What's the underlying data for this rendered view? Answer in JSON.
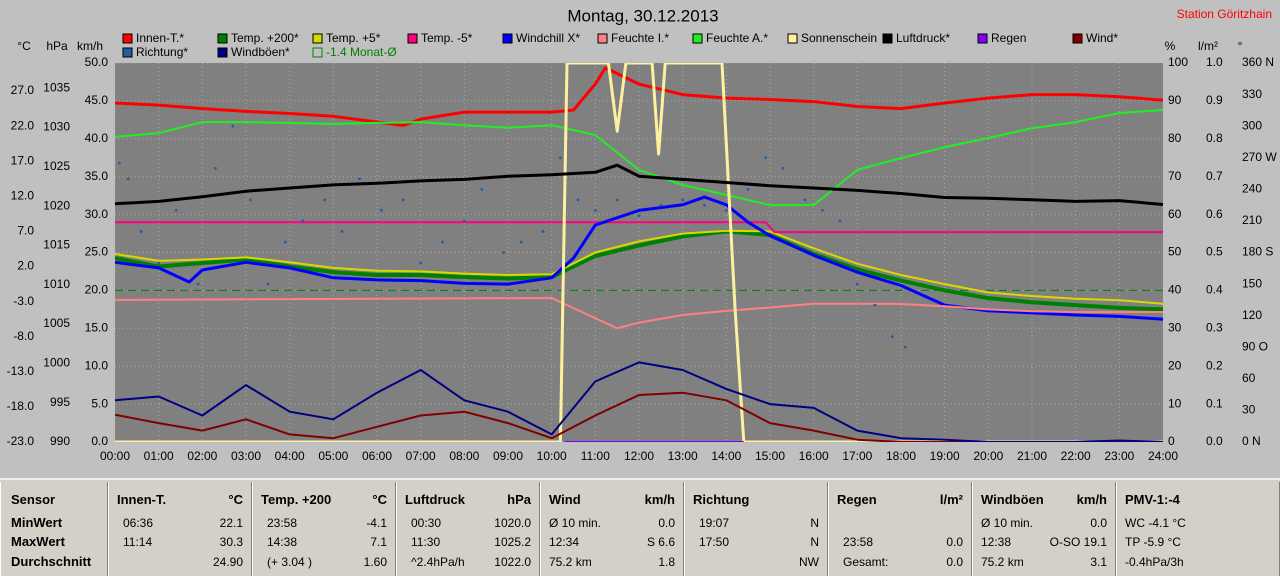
{
  "title": "Montag, 30.12.2013",
  "station": "Station Göritzhain",
  "chart_data": {
    "type": "line",
    "grid": true,
    "xlim": [
      0,
      24
    ],
    "xticks": [
      {
        "value": 0,
        "label": "00:00"
      },
      {
        "value": 1,
        "label": "01:00"
      },
      {
        "value": 2,
        "label": "02:00"
      },
      {
        "value": 3,
        "label": "03:00"
      },
      {
        "value": 4,
        "label": "04:00"
      },
      {
        "value": 5,
        "label": "05:00"
      },
      {
        "value": 6,
        "label": "06:00"
      },
      {
        "value": 7,
        "label": "07:00"
      },
      {
        "value": 8,
        "label": "08:00"
      },
      {
        "value": 9,
        "label": "09:00"
      },
      {
        "value": 10,
        "label": "10:00"
      },
      {
        "value": 11,
        "label": "11:00"
      },
      {
        "value": 12,
        "label": "12:00"
      },
      {
        "value": 13,
        "label": "13:00"
      },
      {
        "value": 14,
        "label": "14:00"
      },
      {
        "value": 15,
        "label": "15:00"
      },
      {
        "value": 16,
        "label": "16:00"
      },
      {
        "value": 17,
        "label": "17:00"
      },
      {
        "value": 18,
        "label": "18:00"
      },
      {
        "value": 19,
        "label": "19:00"
      },
      {
        "value": 20,
        "label": "20:00"
      },
      {
        "value": 21,
        "label": "21:00"
      },
      {
        "value": 22,
        "label": "22:00"
      },
      {
        "value": 23,
        "label": "23:00"
      },
      {
        "value": 24,
        "label": "24:00"
      }
    ],
    "axes": [
      {
        "id": "temp",
        "title": "°C",
        "side": "left",
        "lim": [
          -23,
          31
        ],
        "ticks": [
          {
            "value": 27,
            "label": "27.0"
          },
          {
            "value": 22,
            "label": "22.0"
          },
          {
            "value": 17,
            "label": "17.0"
          },
          {
            "value": 12,
            "label": "12.0"
          },
          {
            "value": 7,
            "label": "7.0"
          },
          {
            "value": 2,
            "label": "2.0"
          },
          {
            "value": -3,
            "label": "-3.0"
          },
          {
            "value": -8,
            "label": "-8.0"
          },
          {
            "value": -13,
            "label": "-13.0"
          },
          {
            "value": -18,
            "label": "-18.0"
          },
          {
            "value": -23,
            "label": "-23.0"
          }
        ]
      },
      {
        "id": "hpa",
        "title": "hPa",
        "side": "left",
        "lim": [
          990,
          1038.2
        ],
        "ticks": [
          1035,
          1030,
          1025,
          1020,
          1015,
          1010,
          1005,
          1000,
          995,
          990
        ]
      },
      {
        "id": "kmh",
        "title": "km/h",
        "side": "left",
        "grid": true,
        "lim": [
          0,
          50
        ],
        "ticks": [
          {
            "value": 50,
            "label": "50.0"
          },
          {
            "value": 45,
            "label": "45.0"
          },
          {
            "value": 40,
            "label": "40.0"
          },
          {
            "value": 35,
            "label": "35.0"
          },
          {
            "value": 30,
            "label": "30.0"
          },
          {
            "value": 25,
            "label": "25.0"
          },
          {
            "value": 20,
            "label": "20.0"
          },
          {
            "value": 15,
            "label": "15.0"
          },
          {
            "value": 10,
            "label": "10.0"
          },
          {
            "value": 5,
            "label": "5.0"
          },
          {
            "value": 0,
            "label": "0.0"
          }
        ]
      },
      {
        "id": "pct",
        "title": "%",
        "side": "right",
        "lim": [
          0,
          100
        ],
        "ticks": [
          100,
          90,
          80,
          70,
          60,
          50,
          40,
          30,
          20,
          10,
          0
        ]
      },
      {
        "id": "rain",
        "title": "l/m²",
        "side": "right",
        "lim": [
          0,
          1
        ],
        "ticks": [
          {
            "value": 1,
            "label": "1.0"
          },
          {
            "value": 0.9,
            "label": "0.9"
          },
          {
            "value": 0.8,
            "label": "0.8"
          },
          {
            "value": 0.7,
            "label": "0.7"
          },
          {
            "value": 0.6,
            "label": "0.6"
          },
          {
            "value": 0.5,
            "label": "0.5"
          },
          {
            "value": 0.4,
            "label": "0.4"
          },
          {
            "value": 0.3,
            "label": "0.3"
          },
          {
            "value": 0.2,
            "label": "0.2"
          },
          {
            "value": 0.1,
            "label": "0.1"
          },
          {
            "value": 0,
            "label": "0.0"
          }
        ]
      },
      {
        "id": "deg",
        "title": "°",
        "side": "right",
        "lim": [
          0,
          360
        ],
        "ticks": [
          {
            "value": 360,
            "label": "360 N"
          },
          330,
          300,
          {
            "value": 270,
            "label": "270 W"
          },
          240,
          210,
          {
            "value": 180,
            "label": "180 S"
          },
          150,
          120,
          {
            "value": 90,
            "label": "90 O"
          },
          60,
          30,
          {
            "value": 0,
            "label": "0 N"
          }
        ]
      }
    ],
    "series": [
      {
        "name": "Innen-T.*",
        "color": "#ff0000",
        "line_width": 3,
        "axis": "temp",
        "x": [
          0,
          1,
          2,
          3,
          4,
          5,
          6,
          6.6,
          7,
          8,
          9,
          10,
          10.5,
          11,
          11.23,
          12,
          13,
          14,
          15,
          16,
          17,
          18,
          19,
          20,
          21,
          22,
          23,
          24
        ],
        "values": [
          25.3,
          25.0,
          24.5,
          24.1,
          23.8,
          23.4,
          22.6,
          22.1,
          23.0,
          24.0,
          24.0,
          24.0,
          24.3,
          28.0,
          30.3,
          28.0,
          26.5,
          26.0,
          25.8,
          25.5,
          24.8,
          24.5,
          25.3,
          26.0,
          26.5,
          26.5,
          26.2,
          25.7
        ]
      },
      {
        "name": "Temp. +200*",
        "color": "#008000",
        "line_width": 4,
        "axis": "temp",
        "x": [
          0,
          1,
          2,
          3,
          4,
          5,
          6,
          7,
          8,
          9,
          10,
          11,
          12,
          13,
          14,
          15,
          16,
          17,
          18,
          19,
          20,
          21,
          22,
          23,
          24
        ],
        "values": [
          3.2,
          2.0,
          2.5,
          3.0,
          2.0,
          1.2,
          0.8,
          0.8,
          0.5,
          0.3,
          0.5,
          3.5,
          5.0,
          6.3,
          7.0,
          6.5,
          3.8,
          1.6,
          0.0,
          -1.4,
          -2.5,
          -3.1,
          -3.5,
          -3.9,
          -4.1
        ]
      },
      {
        "name": "Temp. +5*",
        "color": "#d8d800",
        "line_width": 2,
        "axis": "temp",
        "x": [
          0,
          1,
          2,
          3,
          4,
          5,
          6,
          7,
          8,
          9,
          10,
          11,
          12,
          13,
          14,
          15,
          16,
          17,
          18,
          19,
          20,
          21,
          22,
          23,
          24
        ],
        "values": [
          3.8,
          2.8,
          3.0,
          3.3,
          2.6,
          1.8,
          1.4,
          1.3,
          1.0,
          0.8,
          0.9,
          4.0,
          5.6,
          6.7,
          7.1,
          7.0,
          4.6,
          2.4,
          0.8,
          -0.5,
          -1.7,
          -2.2,
          -2.6,
          -2.8,
          -3.3
        ]
      },
      {
        "name": "Temp. -5*",
        "color": "#ff0080",
        "line_width": 2,
        "axis": "temp",
        "x": [
          0,
          14.9,
          15.1,
          24
        ],
        "values": [
          8.3,
          8.3,
          6.9,
          6.9
        ]
      },
      {
        "name": "Windchill X*",
        "color": "#0000ff",
        "line_width": 3,
        "axis": "temp",
        "x": [
          0,
          1,
          1.7,
          2,
          3,
          4,
          5,
          6,
          7,
          8,
          9,
          10,
          10.5,
          11,
          12,
          13,
          13.5,
          14,
          14.5,
          15,
          16,
          17,
          18,
          19,
          20,
          21,
          22,
          23,
          24
        ],
        "values": [
          2.6,
          1.8,
          -0.2,
          1.5,
          2.6,
          1.8,
          0.4,
          0.1,
          0.0,
          -0.4,
          -0.5,
          0.4,
          3.2,
          7.9,
          10.0,
          10.8,
          11.9,
          10.8,
          8.3,
          6.4,
          3.6,
          1.2,
          -0.7,
          -3.5,
          -4.3,
          -4.6,
          -4.9,
          -5.1,
          -5.5
        ]
      },
      {
        "name": "Feuchte I.*",
        "color": "#ff8080",
        "line_width": 2,
        "axis": "pct",
        "x": [
          0,
          10,
          11.5,
          12,
          13,
          14,
          15,
          16,
          17,
          18,
          19,
          20,
          21,
          22,
          23,
          24
        ],
        "values": [
          37.5,
          38,
          30,
          31.5,
          33.5,
          34.6,
          35.5,
          36.5,
          36.5,
          36.4,
          35.8,
          35,
          34.5,
          34.3,
          34.3,
          34.3
        ]
      },
      {
        "name": "Feuchte A.*",
        "color": "#20f020",
        "line_width": 2,
        "axis": "pct",
        "x": [
          0,
          1,
          2,
          3,
          4,
          5,
          6,
          7,
          8,
          9,
          10,
          11,
          12,
          13,
          14,
          15,
          16,
          17,
          18,
          19,
          20,
          21,
          22,
          23,
          24
        ],
        "values": [
          80.5,
          81.5,
          84.4,
          84.4,
          84.2,
          83.9,
          84.2,
          84.4,
          83.6,
          82.9,
          83.6,
          81,
          71.8,
          67.8,
          65.2,
          62.5,
          62.5,
          71.8,
          74.9,
          77.8,
          80.2,
          82.8,
          84.4,
          86.8,
          87.6
        ]
      },
      {
        "name": "Sonnenschein",
        "color": "#fff0a0",
        "line_width": 3,
        "axis": "pct",
        "x": [
          0,
          10.2,
          10.35,
          11.3,
          11.5,
          11.7,
          12.3,
          12.45,
          12.6,
          13.0,
          13.9,
          14.2,
          14.4,
          24
        ],
        "values": [
          0,
          0,
          100,
          100,
          82,
          100,
          100,
          76,
          100,
          100,
          100,
          35,
          0,
          0
        ]
      },
      {
        "name": "Luftdruck*",
        "color": "#000000",
        "line_width": 3,
        "axis": "hpa",
        "x": [
          0,
          1,
          2,
          3,
          4,
          5,
          6,
          7,
          8,
          9,
          10,
          11,
          11.5,
          12,
          13,
          14,
          15,
          16,
          17,
          18,
          19,
          20,
          21,
          22,
          23,
          24
        ],
        "values": [
          1020.3,
          1020.6,
          1021.2,
          1021.9,
          1022.3,
          1022.7,
          1022.9,
          1023.2,
          1023.4,
          1023.8,
          1024.0,
          1024.3,
          1025.2,
          1023.8,
          1023.4,
          1023.0,
          1022.6,
          1022.3,
          1022.0,
          1021.6,
          1021.1,
          1021.0,
          1020.8,
          1020.6,
          1020.7,
          1020.2
        ]
      },
      {
        "name": "Regen",
        "color": "#8000ff",
        "line_width": 2,
        "axis": "rain",
        "x": [
          10.3,
          14.4
        ],
        "values": [
          0,
          0
        ]
      },
      {
        "name": "Wind*",
        "color": "#800000",
        "line_width": 2,
        "axis": "kmh",
        "x": [
          0,
          1,
          2,
          3,
          4,
          5,
          6,
          7,
          8,
          9,
          10,
          11,
          12,
          13,
          14,
          15,
          16,
          17,
          18,
          19,
          20,
          21,
          22,
          23,
          24
        ],
        "values": [
          3.6,
          2.5,
          1.5,
          3.0,
          1.0,
          0.5,
          2.0,
          3.5,
          4.0,
          2.5,
          0.5,
          3.5,
          6.2,
          6.5,
          5.5,
          2.5,
          1.5,
          0.3,
          0,
          0,
          0,
          0,
          0,
          0,
          0
        ]
      },
      {
        "name": "Richtung*",
        "color": "#2060a0",
        "marker": true,
        "axis": "deg",
        "x": [
          0.1,
          0.3,
          0.6,
          1.0,
          1.4,
          1.9,
          2.3,
          2.7,
          3.1,
          3.5,
          3.9,
          4.3,
          4.8,
          5.2,
          5.6,
          6.1,
          6.6,
          7.0,
          7.5,
          8.0,
          8.4,
          8.9,
          9.3,
          9.8,
          10.2,
          10.6,
          11.0,
          11.5,
          12.0,
          12.5,
          13.0,
          13.5,
          14.0,
          14.5,
          14.9,
          15.3,
          15.8,
          16.2,
          16.6,
          17.0,
          17.4,
          17.8,
          18.1
        ],
        "values": [
          265,
          250,
          200,
          170,
          220,
          150,
          260,
          300,
          230,
          150,
          190,
          210,
          230,
          200,
          250,
          220,
          230,
          170,
          190,
          210,
          240,
          180,
          190,
          200,
          270,
          230,
          220,
          230,
          215,
          225,
          230,
          225,
          220,
          240,
          270,
          260,
          230,
          220,
          210,
          150,
          130,
          100,
          90
        ]
      },
      {
        "name": "Windböen*",
        "color": "#000080",
        "line_width": 2,
        "axis": "kmh",
        "x": [
          0,
          1,
          2,
          3,
          4,
          5,
          6,
          7,
          8,
          9,
          10,
          11,
          12,
          13,
          14,
          15,
          16,
          17,
          18,
          19,
          20,
          21,
          22,
          23,
          24
        ],
        "values": [
          5.5,
          6.0,
          3.5,
          7.5,
          4.0,
          3.0,
          6.5,
          9.5,
          5.5,
          4.0,
          1.0,
          8.0,
          10.5,
          9.5,
          7.0,
          5.0,
          4.5,
          1.5,
          0.5,
          0.3,
          0,
          0,
          0,
          0.2,
          0
        ]
      }
    ],
    "reference_line": {
      "name": "-1.4 Monat-Ø",
      "value": -1.4,
      "axis": "temp",
      "color": "#008000"
    }
  },
  "table": {
    "header": "Sensor",
    "row_labels": [
      "MinWert",
      "MaxWert",
      "Durchschnitt"
    ],
    "columns": [
      {
        "name": "Innen-T.",
        "unit": "°C",
        "cells": [
          [
            "06:36",
            "22.1"
          ],
          [
            "11:14",
            "30.3"
          ],
          [
            null,
            "24.90"
          ]
        ]
      },
      {
        "name": "Temp. +200",
        "unit": "°C",
        "cells": [
          [
            "23:58",
            "-4.1"
          ],
          [
            "14:38",
            "7.1"
          ],
          [
            "(+ 3.04 )",
            "1.60"
          ]
        ]
      },
      {
        "name": "Luftdruck",
        "unit": "hPa",
        "cells": [
          [
            "00:30",
            "1020.0"
          ],
          [
            "11:30",
            "1025.2"
          ],
          [
            "^2.4hPa/h",
            "1022.0"
          ]
        ]
      },
      {
        "name": "Wind",
        "unit": "km/h",
        "cells": [
          [
            "Ø 10 min.",
            "0.0"
          ],
          [
            "12:34",
            "S 6.6"
          ],
          [
            "75.2 km",
            "1.8"
          ]
        ]
      },
      {
        "name": "Richtung",
        "unit": null,
        "cells": [
          [
            "19:07",
            "N"
          ],
          [
            "17:50",
            "N"
          ],
          [
            null,
            "NW"
          ]
        ]
      },
      {
        "name": "Regen",
        "unit": "l/m²",
        "cells": [
          [
            null,
            null
          ],
          [
            "23:58",
            "0.0"
          ],
          [
            "Gesamt:",
            "0.0"
          ]
        ]
      },
      {
        "name": "Windböen",
        "unit": "km/h",
        "cells": [
          [
            "Ø 10 min.",
            "0.0"
          ],
          [
            "12:38",
            "O-SO 19.1"
          ],
          [
            "75.2 km",
            "3.1"
          ]
        ]
      },
      {
        "name": "PMV-1:-4",
        "unit": null,
        "cells": [
          [
            "WC -4.1 °C"
          ],
          [
            "TP -5.9 °C"
          ],
          [
            "-0.4hPa/3h"
          ]
        ]
      }
    ]
  }
}
